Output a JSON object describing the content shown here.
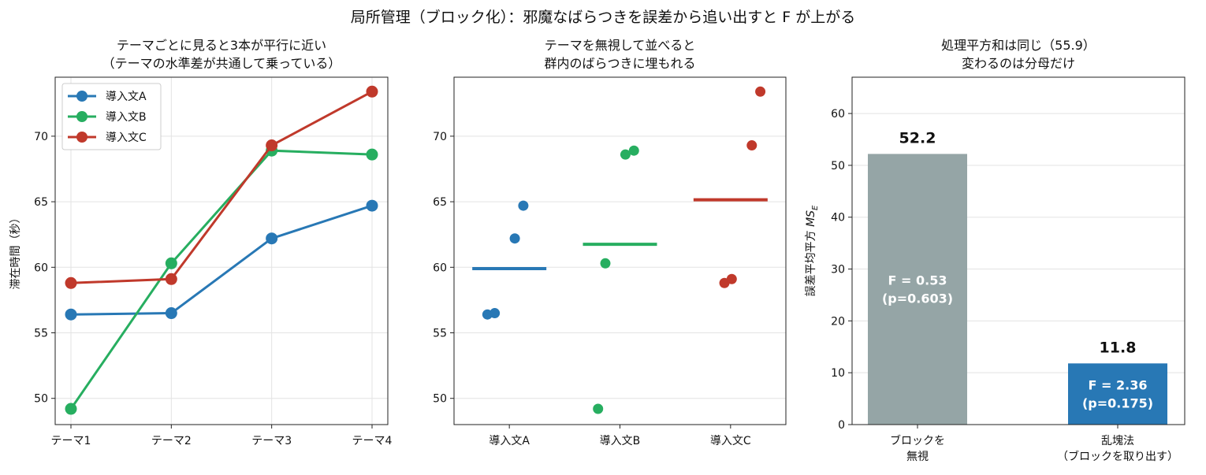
{
  "figure_title": "局所管理（ブロック化）：邪魔なばらつきを誤差から追い出すと F が上がる",
  "chart_data": [
    {
      "type": "line",
      "title_lines": [
        "テーマごとに見ると3本が平行に近い",
        "（テーマの水準差が共通して乗っている）"
      ],
      "xlabel": "",
      "ylabel": "滞在時間（秒）",
      "categories": [
        "テーマ1",
        "テーマ2",
        "テーマ3",
        "テーマ4"
      ],
      "ylim": [
        48,
        74.5
      ],
      "yticks": [
        50,
        55,
        60,
        65,
        70
      ],
      "grid": true,
      "legend": "top-left",
      "series": [
        {
          "name": "導入文A",
          "color": "#2878b5",
          "values": [
            56.4,
            56.5,
            62.2,
            64.7
          ]
        },
        {
          "name": "導入文B",
          "color": "#27ae60",
          "values": [
            49.2,
            60.3,
            68.9,
            68.6
          ]
        },
        {
          "name": "導入文C",
          "color": "#c0392b",
          "values": [
            58.8,
            59.1,
            69.3,
            73.4
          ]
        }
      ]
    },
    {
      "type": "scatter",
      "title_lines": [
        "テーマを無視して並べると",
        "群内のばらつきに埋もれる"
      ],
      "xlabel": "",
      "ylabel": "",
      "categories": [
        "導入文A",
        "導入文B",
        "導入文C"
      ],
      "ylim": [
        48,
        74.5
      ],
      "yticks": [
        50,
        55,
        60,
        65,
        70
      ],
      "grid": true,
      "groups": [
        {
          "name": "導入文A",
          "color": "#2878b5",
          "points": [
            56.4,
            56.5,
            62.2,
            64.7
          ],
          "mean": 59.9
        },
        {
          "name": "導入文B",
          "color": "#27ae60",
          "points": [
            49.2,
            60.3,
            68.9,
            68.6
          ],
          "mean": 61.75
        },
        {
          "name": "導入文C",
          "color": "#c0392b",
          "points": [
            58.8,
            59.1,
            69.3,
            73.4
          ],
          "mean": 65.15
        }
      ]
    },
    {
      "type": "bar",
      "title_lines": [
        "処理平方和は同じ（55.9）",
        "変わるのは分母だけ"
      ],
      "xlabel": "",
      "ylabel": "誤差平均平方",
      "ylabel_math": "MS",
      "ylabel_sub": "E",
      "categories": [
        [
          "ブロックを",
          "無視"
        ],
        [
          "乱塊法",
          "（ブロックを取り出す）"
        ]
      ],
      "values": [
        52.2,
        11.8
      ],
      "value_labels": [
        "52.2",
        "11.8"
      ],
      "inner_labels": [
        [
          "F = 0.53",
          "(p=0.603)"
        ],
        [
          "F = 2.36",
          "(p=0.175)"
        ]
      ],
      "colors": [
        "#95a5a6",
        "#2878b5"
      ],
      "ylim": [
        0,
        67
      ],
      "yticks": [
        0,
        10,
        20,
        30,
        40,
        50,
        60
      ],
      "grid": true
    }
  ]
}
